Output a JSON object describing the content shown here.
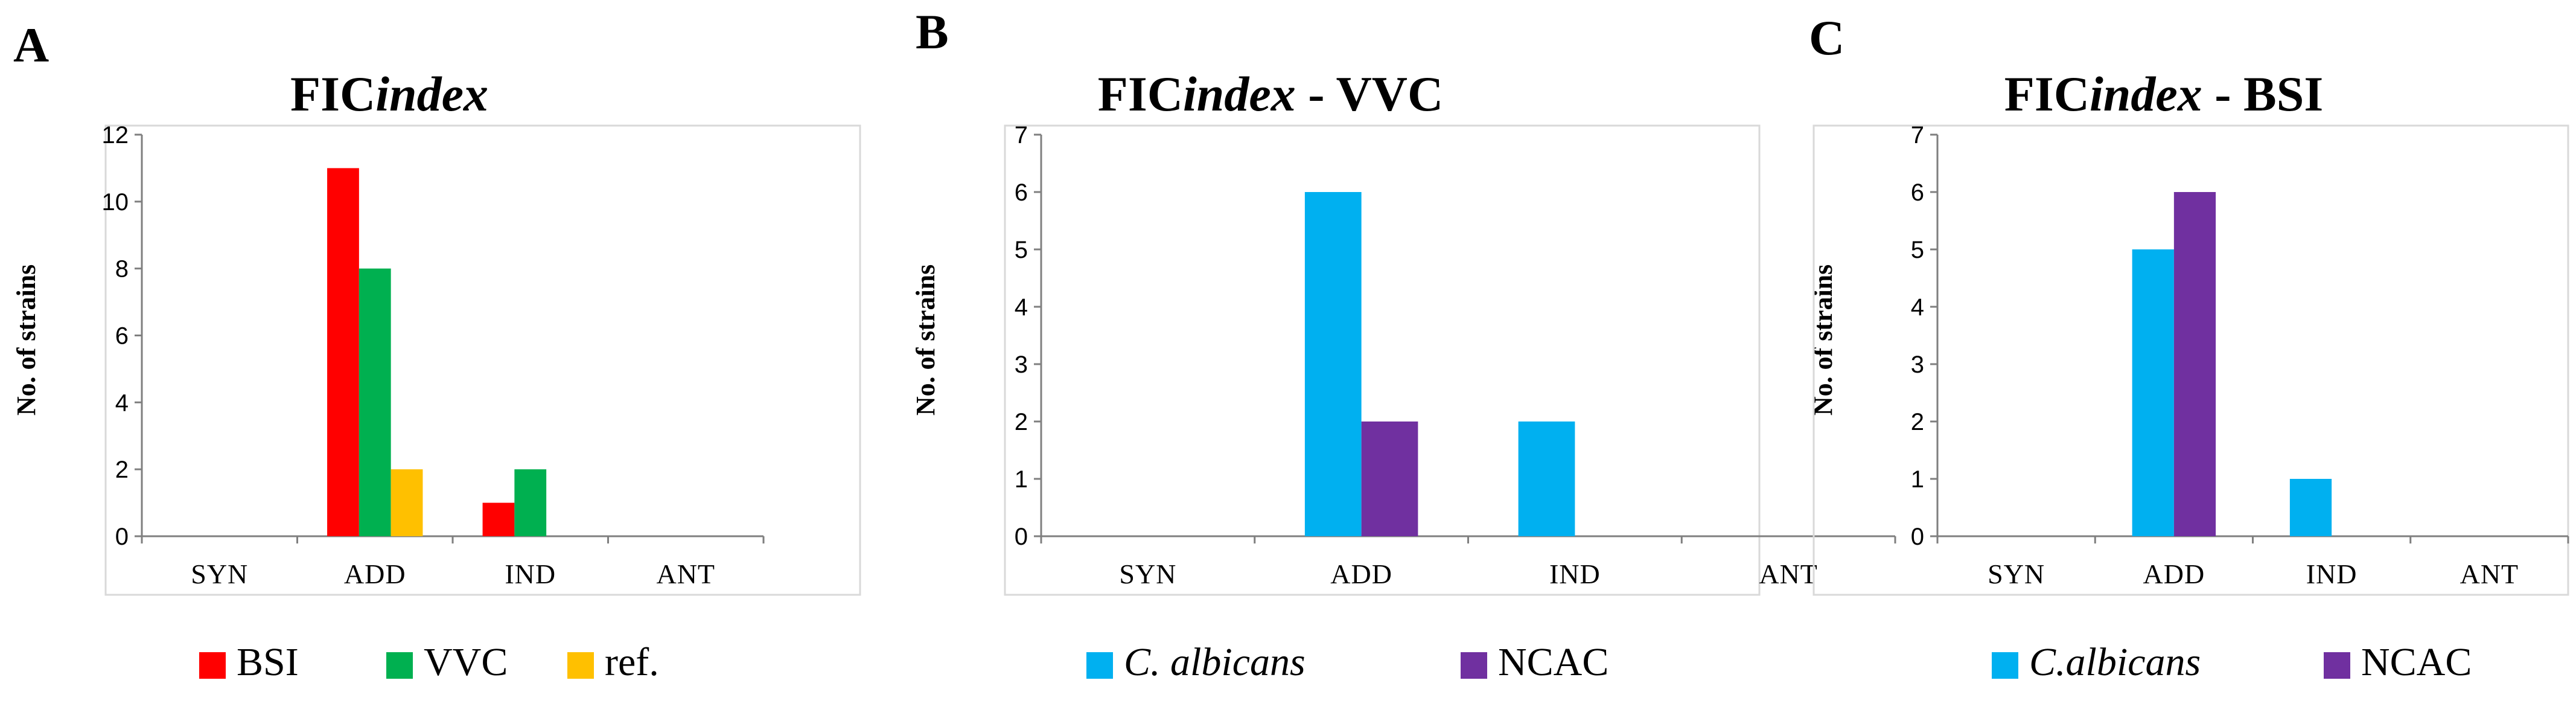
{
  "chart_data": [
    {
      "panel": "A",
      "type": "bar",
      "title": "FIC",
      "title_italic": "index",
      "title_suffix": "",
      "ylabel": "No. of strains",
      "xlabel": "",
      "ylim": [
        0,
        12
      ],
      "yticks": [
        "0",
        "2",
        "4",
        "6",
        "8",
        "10",
        "12"
      ],
      "categories": [
        "SYN",
        "ADD",
        "IND",
        "ANT"
      ],
      "series": [
        {
          "name": "BSI",
          "italic": false,
          "color": "#ff0000",
          "values": [
            0,
            11,
            1,
            0
          ]
        },
        {
          "name": "VVC",
          "italic": false,
          "color": "#00b050",
          "values": [
            0,
            8,
            2,
            0
          ]
        },
        {
          "name": "ref.",
          "italic": false,
          "color": "#ffc000",
          "values": [
            0,
            2,
            0,
            0
          ]
        }
      ]
    },
    {
      "panel": "B",
      "type": "bar",
      "title": "FIC",
      "title_italic": "index",
      "title_suffix": " - VVC",
      "ylabel": "No. of strains",
      "xlabel": "",
      "ylim": [
        0,
        7
      ],
      "yticks": [
        "0",
        "1",
        "2",
        "3",
        "4",
        "5",
        "6",
        "7"
      ],
      "categories": [
        "SYN",
        "ADD",
        "IND",
        "ANT"
      ],
      "series": [
        {
          "name": "C. albicans",
          "italic": true,
          "color": "#00b0f0",
          "values": [
            0,
            6,
            2,
            0
          ]
        },
        {
          "name": "NCAC",
          "italic": false,
          "color": "#7030a0",
          "values": [
            0,
            2,
            0,
            0
          ]
        }
      ]
    },
    {
      "panel": "C",
      "type": "bar",
      "title": "FIC",
      "title_italic": "index",
      "title_suffix": " - BSI",
      "ylabel": "No. of strains",
      "xlabel": "",
      "ylim": [
        0,
        7
      ],
      "yticks": [
        "0",
        "1",
        "2",
        "3",
        "4",
        "5",
        "6",
        "7"
      ],
      "categories": [
        "SYN",
        "ADD",
        "IND",
        "ANT"
      ],
      "series": [
        {
          "name": "C.albicans",
          "italic": true,
          "color": "#00b0f0",
          "values": [
            0,
            5,
            1,
            0
          ]
        },
        {
          "name": "NCAC",
          "italic": false,
          "color": "#7030a0",
          "values": [
            0,
            6,
            0,
            0
          ]
        }
      ]
    }
  ]
}
